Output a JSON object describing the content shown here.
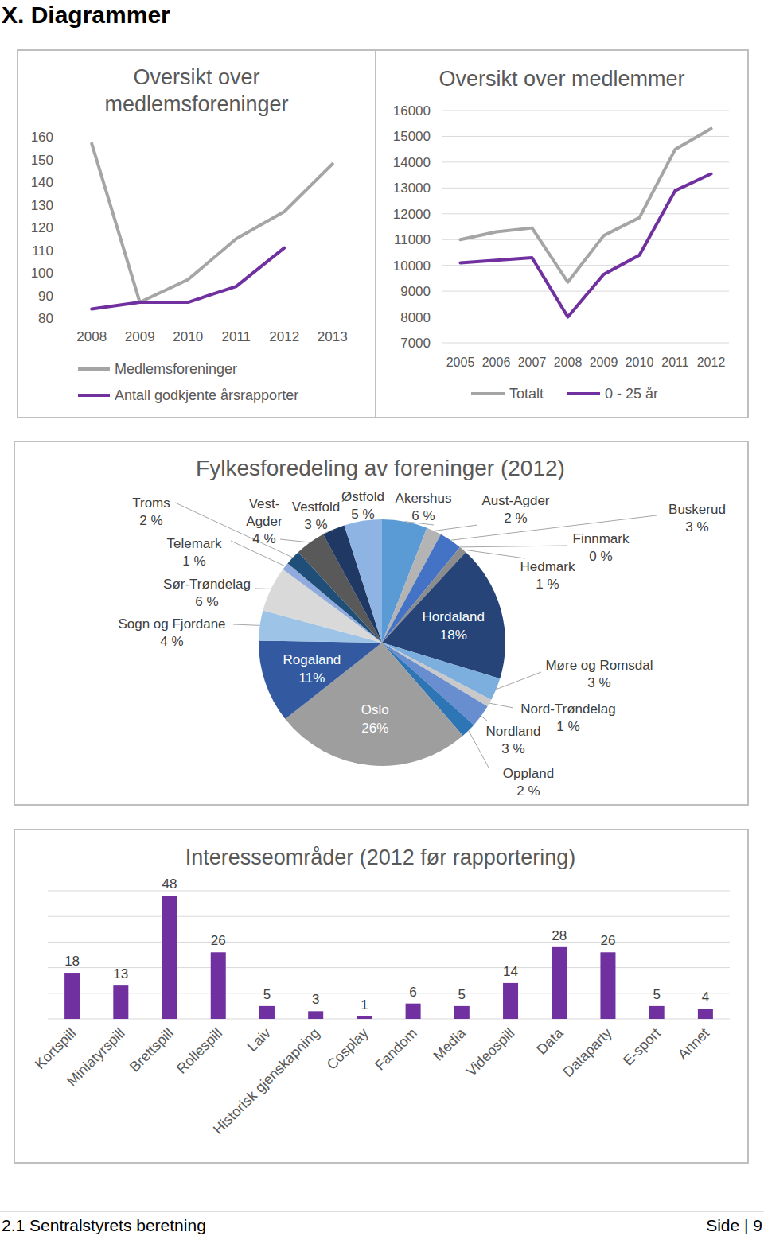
{
  "page": {
    "heading": "X. Diagrammer",
    "footer_left": "2.1 Sentralstyrets beretning",
    "footer_right": "Side | 9"
  },
  "chart_data": [
    {
      "type": "line",
      "title": "Oversikt over medlemsforeninger",
      "categories": [
        "2008",
        "2009",
        "2010",
        "2011",
        "2012",
        "2013"
      ],
      "series": [
        {
          "name": "Medlemsforeninger",
          "color": "#a5a5a5",
          "values": [
            157,
            87,
            97,
            115,
            127,
            148
          ]
        },
        {
          "name": "Antall godkjente årsrapporter",
          "color": "#7030a0",
          "values": [
            84,
            87,
            87,
            94,
            111,
            null
          ]
        }
      ],
      "ylim": [
        80,
        160
      ],
      "yticks": [
        80,
        90,
        100,
        110,
        120,
        130,
        140,
        150,
        160
      ],
      "grid": false,
      "legend": "bottom"
    },
    {
      "type": "line",
      "title": "Oversikt over medlemmer",
      "categories": [
        "2005",
        "2006",
        "2007",
        "2008",
        "2009",
        "2010",
        "2011",
        "2012"
      ],
      "series": [
        {
          "name": "Totalt",
          "color": "#a5a5a5",
          "values": [
            11000,
            11300,
            11450,
            9350,
            11150,
            11850,
            14500,
            15300
          ]
        },
        {
          "name": "0 - 25 år",
          "color": "#7030a0",
          "values": [
            10100,
            10200,
            10300,
            8000,
            9650,
            10400,
            12900,
            13550
          ]
        }
      ],
      "ylim": [
        7000,
        16000
      ],
      "yticks": [
        7000,
        8000,
        9000,
        10000,
        11000,
        12000,
        13000,
        14000,
        15000,
        16000
      ],
      "grid": true,
      "legend": "bottom"
    },
    {
      "type": "pie",
      "title": "Fylkesforedeling av foreninger (2012)",
      "categories": [
        "Akershus",
        "Aust-Agder",
        "Buskerud",
        "Finnmark",
        "Hedmark",
        "Hordaland",
        "Møre og Romsdal",
        "Nord-Trøndelag",
        "Nordland",
        "Oppland",
        "Oslo",
        "Rogaland",
        "Sogn og Fjordane",
        "Sør-Trøndelag",
        "Telemark",
        "Troms",
        "Vest-Agder",
        "Vestfold",
        "Østfold"
      ],
      "values": [
        6,
        2,
        3,
        0,
        1,
        18,
        3,
        1,
        3,
        2,
        26,
        11,
        4,
        6,
        1,
        2,
        4,
        3,
        5
      ],
      "value_labels": [
        "6 %",
        "2 %",
        "3 %",
        "0 %",
        "1 %",
        "18%",
        "3 %",
        "1 %",
        "3 %",
        "2 %",
        "26%",
        "11%",
        "4 %",
        "6 %",
        "1 %",
        "2 %",
        "4 %",
        "3 %",
        "5 %"
      ],
      "colors": [
        "#5b9bd5",
        "#b4b4b4",
        "#4472c4",
        "#7f7f7f",
        "#8c8c8c",
        "#264478",
        "#7cafdd",
        "#c9c9c9",
        "#698ed0",
        "#2e75b6",
        "#9e9e9e",
        "#335aa1",
        "#9dc3e6",
        "#d9d9d9",
        "#8faadc",
        "#1f4e79",
        "#595959",
        "#203864",
        "#8eb4e3"
      ],
      "data_labels": true
    },
    {
      "type": "bar",
      "title": "Interesseområder (2012 før rapportering)",
      "categories": [
        "Kortspill",
        "Miniatyrspill",
        "Brettspill",
        "Rollespill",
        "Laiv",
        "Historisk gjenskapning",
        "Cosplay",
        "Fandom",
        "Media",
        "Videospill",
        "Data",
        "Dataparty",
        "E-sport",
        "Annet"
      ],
      "values": [
        18,
        13,
        48,
        26,
        5,
        3,
        1,
        6,
        5,
        14,
        28,
        26,
        5,
        4
      ],
      "color": "#7030a0",
      "ylim": [
        0,
        50
      ],
      "yticks": [
        0,
        10,
        20,
        30,
        40,
        50
      ],
      "grid": true,
      "data_labels": true,
      "tick_labels": "x"
    }
  ]
}
